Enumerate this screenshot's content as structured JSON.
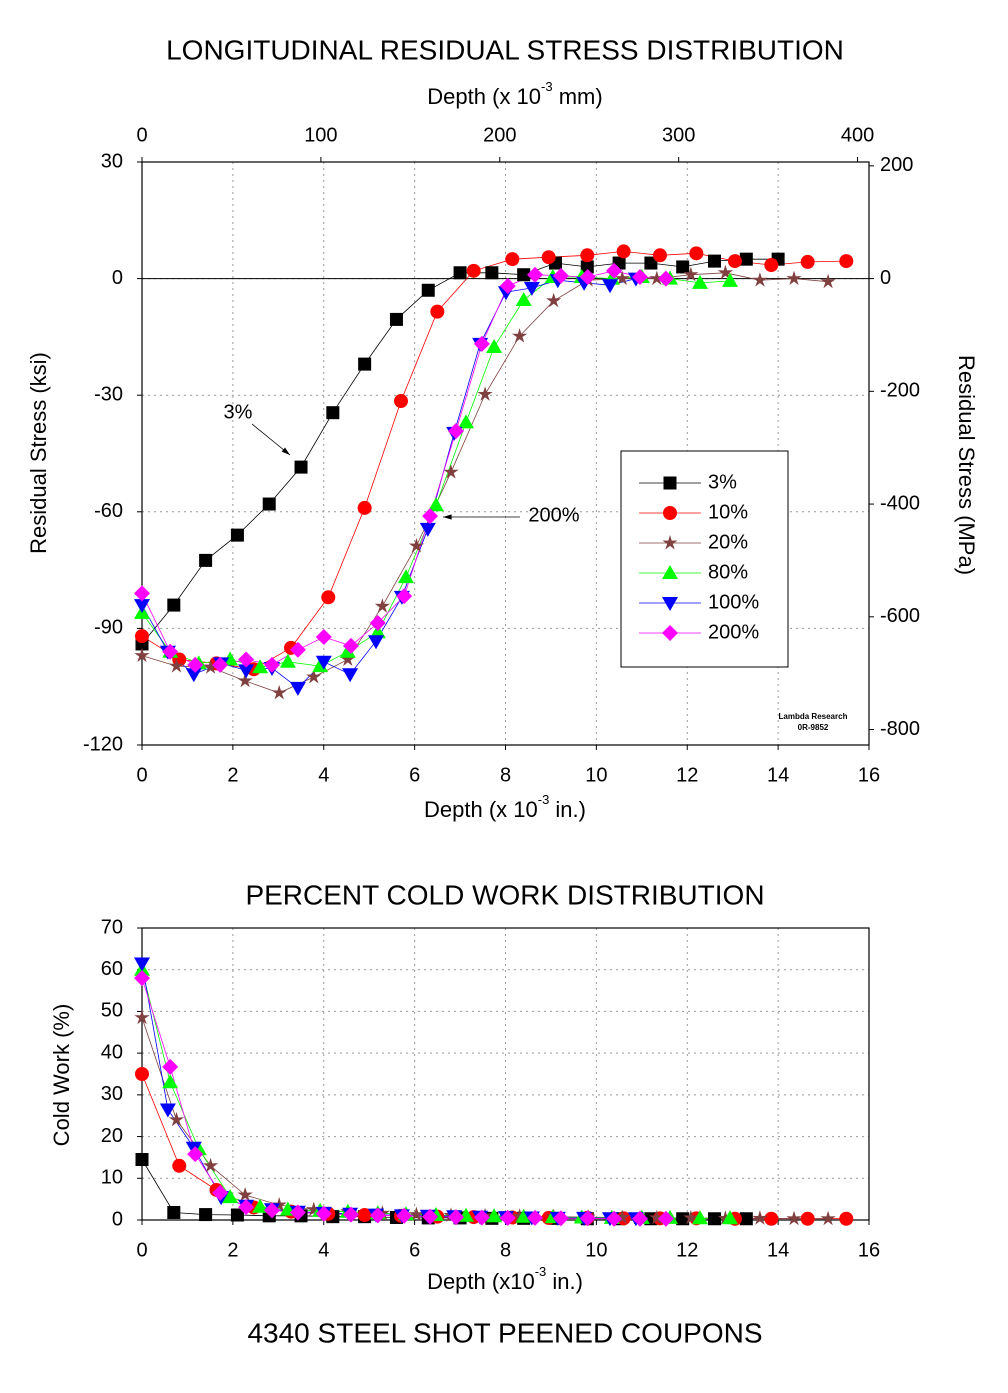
{
  "chart_data": [
    {
      "type": "scatter",
      "title": "LONGITUDINAL RESIDUAL STRESS DISTRIBUTION",
      "xlabel": {
        "text": "Depth (x 10",
        "sup": "-3",
        "rest": " in.)"
      },
      "x2label": {
        "text": "Depth (x 10",
        "sup": "-3",
        "rest": " mm)"
      },
      "ylabel": "Residual Stress (ksi)",
      "y2label": "Residual Stress (MPa)",
      "xlim": [
        0,
        16
      ],
      "xticks": [
        0,
        2,
        4,
        6,
        8,
        10,
        12,
        14,
        16
      ],
      "x2lim": [
        0,
        406.4
      ],
      "x2ticks": [
        0,
        100,
        200,
        300,
        400
      ],
      "ylim": [
        -120,
        30
      ],
      "yticks": [
        -120,
        -90,
        -60,
        -30,
        0,
        30
      ],
      "y2lim": [
        -827.4,
        206.8
      ],
      "y2ticks": [
        -800,
        -600,
        -400,
        -200,
        0,
        200
      ],
      "grid": true,
      "zero_line": true,
      "legend": "right",
      "annotations": [
        "3%",
        "200%"
      ],
      "stamp": [
        "Lambda Research",
        "0R-9852"
      ],
      "series": [
        {
          "name": "3%",
          "color": "#000000",
          "marker": "square",
          "x": [
            0,
            0.7,
            1.4,
            2.1,
            2.8,
            3.5,
            4.2,
            4.9,
            5.6,
            6.3,
            7.0,
            7.7,
            8.4,
            9.1,
            9.8,
            10.5,
            11.2,
            11.9,
            12.6,
            13.3,
            14.0
          ],
          "values": [
            -94,
            -84,
            -72.5,
            -66,
            -58,
            -48.5,
            -34.5,
            -22,
            -10.5,
            -3,
            1.5,
            1.5,
            1,
            4,
            3,
            4,
            4,
            3,
            4.5,
            5,
            5
          ]
        },
        {
          "name": "10%",
          "color": "#ff0000",
          "marker": "circle",
          "x": [
            0,
            0.82,
            1.64,
            2.46,
            3.28,
            4.1,
            4.9,
            5.7,
            6.5,
            7.3,
            8.15,
            8.95,
            9.8,
            10.6,
            11.4,
            12.2,
            13.05,
            13.85,
            14.65,
            15.5
          ],
          "values": [
            -92,
            -98,
            -99,
            -100.5,
            -95,
            -82,
            -59,
            -31.5,
            -8.5,
            2,
            5,
            5.5,
            6,
            7,
            6,
            6.5,
            4.5,
            3.5,
            4.3,
            4.5
          ]
        },
        {
          "name": "20%",
          "color": "#804040",
          "marker": "star",
          "x": [
            0,
            0.76,
            1.51,
            2.27,
            3.02,
            3.78,
            4.53,
            5.29,
            6.04,
            6.8,
            7.55,
            8.31,
            9.06,
            9.82,
            10.57,
            11.33,
            12.08,
            12.84,
            13.6,
            14.35,
            15.1
          ],
          "values": [
            -97,
            -99.7,
            -100,
            -103.5,
            -106.6,
            -102.5,
            -98,
            -84.3,
            -68.8,
            -49.8,
            -29.8,
            -14.8,
            -5.7,
            -0.4,
            0,
            0,
            1,
            1.5,
            -0.4,
            0,
            -0.8
          ]
        },
        {
          "name": "80%",
          "color": "#00ff00",
          "marker": "triangle-up",
          "x": [
            0,
            0.62,
            1.25,
            1.94,
            2.6,
            3.21,
            3.92,
            4.53,
            5.19,
            5.81,
            6.47,
            7.13,
            7.75,
            8.4,
            9.04,
            9.68,
            10.34,
            11.0,
            11.62,
            12.28,
            12.94
          ],
          "values": [
            -86,
            -96,
            -99,
            -98,
            -100,
            -98.6,
            -99.7,
            -96,
            -91,
            -76.8,
            -58.3,
            -37,
            -17.6,
            -5.5,
            0.4,
            0.4,
            0,
            0.4,
            0,
            -1.1,
            -0.6
          ]
        },
        {
          "name": "100%",
          "color": "#0000ff",
          "marker": "triangle-down",
          "x": [
            0,
            0.57,
            1.14,
            1.74,
            2.29,
            2.86,
            3.43,
            4.0,
            4.58,
            5.15,
            5.72,
            6.29,
            6.87,
            7.44,
            8.01,
            8.58,
            9.15,
            9.73,
            10.3,
            10.87
          ],
          "values": [
            -84,
            -96,
            -101.8,
            -99,
            -100.8,
            -100.2,
            -105.3,
            -98.6,
            -101.8,
            -93.3,
            -81.9,
            -64.4,
            -39.7,
            -16.8,
            -3.5,
            -2.4,
            -0.4,
            -1.1,
            -1.7,
            0
          ]
        },
        {
          "name": "200%",
          "color": "#ff00ff",
          "marker": "diamond",
          "x": [
            0,
            0.62,
            1.17,
            1.72,
            2.29,
            2.86,
            3.43,
            4.0,
            4.6,
            5.19,
            5.77,
            6.34,
            6.91,
            7.48,
            8.05,
            8.65,
            9.22,
            9.81,
            10.39,
            10.96,
            11.53
          ],
          "values": [
            -81,
            -96,
            -99.4,
            -99.4,
            -98,
            -99.4,
            -95.5,
            -92.2,
            -94.5,
            -88.6,
            -81.7,
            -61.1,
            -39.2,
            -16.8,
            -1.9,
            1,
            0.7,
            0.4,
            2,
            0.4,
            0
          ]
        }
      ]
    },
    {
      "type": "scatter",
      "title": "PERCENT COLD WORK DISTRIBUTION",
      "xlabel": {
        "text": "Depth (x10",
        "sup": "-3",
        "rest": " in.)"
      },
      "ylabel": "Cold Work (%)",
      "xlim": [
        0,
        16
      ],
      "xticks": [
        0,
        2,
        4,
        6,
        8,
        10,
        12,
        14,
        16
      ],
      "ylim": [
        0,
        70
      ],
      "yticks": [
        0,
        10,
        20,
        30,
        40,
        50,
        60,
        70
      ],
      "grid": true,
      "series": [
        {
          "color": "#000000",
          "marker": "square",
          "x": [
            0,
            0.7,
            1.4,
            2.1,
            2.8,
            3.5,
            4.2,
            4.9,
            5.6,
            6.3,
            7.0,
            7.7,
            8.4,
            9.1,
            9.8,
            10.5,
            11.2,
            11.9,
            12.6,
            13.3
          ],
          "values": [
            14.5,
            1.8,
            1.3,
            1.2,
            1.0,
            1.0,
            0.8,
            0.8,
            0.6,
            0.5,
            0.5,
            0.4,
            0.4,
            0.4,
            0.3,
            0.3,
            0.3,
            0.3,
            0.3,
            0.3
          ]
        },
        {
          "color": "#ff0000",
          "marker": "circle",
          "x": [
            0,
            0.82,
            1.64,
            2.46,
            3.28,
            4.1,
            4.9,
            5.7,
            6.5,
            7.3,
            8.15,
            8.95,
            9.8,
            10.6,
            11.4,
            12.2,
            13.05,
            13.85,
            14.65,
            15.5
          ],
          "values": [
            35,
            13,
            7.2,
            3,
            2,
            1.5,
            1.2,
            1,
            0.8,
            0.7,
            0.6,
            0.5,
            0.5,
            0.4,
            0.4,
            0.4,
            0.3,
            0.3,
            0.3,
            0.3
          ]
        },
        {
          "color": "#804040",
          "marker": "star",
          "x": [
            0,
            0.76,
            1.51,
            2.27,
            3.02,
            3.78,
            4.53,
            5.29,
            6.04,
            6.8,
            7.55,
            8.31,
            9.06,
            9.82,
            10.57,
            11.33,
            12.08,
            12.84,
            13.6,
            14.35,
            15.1
          ],
          "values": [
            48.5,
            24,
            13,
            6,
            3.6,
            2.5,
            2,
            1.6,
            1.3,
            1.1,
            1,
            0.9,
            0.8,
            0.7,
            0.6,
            0.5,
            0.5,
            0.4,
            0.4,
            0.3,
            0.3
          ]
        },
        {
          "color": "#00ff00",
          "marker": "triangle-up",
          "x": [
            0,
            0.62,
            1.25,
            1.94,
            2.6,
            3.21,
            3.92,
            4.53,
            5.19,
            5.81,
            6.47,
            7.13,
            7.75,
            8.4,
            9.04,
            9.68,
            10.34,
            11.0,
            11.62,
            12.28,
            12.94
          ],
          "values": [
            60,
            33,
            17,
            5.5,
            3.2,
            2.5,
            2.2,
            2,
            1.6,
            1.4,
            1.2,
            1,
            0.9,
            0.8,
            0.7,
            0.6,
            0.5,
            0.5,
            0.5,
            0.4,
            0.4
          ]
        },
        {
          "color": "#0000ff",
          "marker": "triangle-down",
          "x": [
            0,
            0.57,
            1.14,
            1.74,
            2.29,
            2.86,
            3.43,
            4.0,
            4.58,
            5.15,
            5.72,
            6.29,
            6.87,
            7.44,
            8.01,
            8.58,
            9.15,
            9.73,
            10.3,
            10.87
          ],
          "values": [
            61.5,
            26.5,
            17.3,
            5.5,
            3.4,
            2.6,
            2,
            1.7,
            1.5,
            1.3,
            1.1,
            1,
            0.9,
            0.8,
            0.7,
            0.6,
            0.5,
            0.5,
            0.4,
            0.4
          ]
        },
        {
          "color": "#ff00ff",
          "marker": "diamond",
          "x": [
            0,
            0.62,
            1.17,
            1.72,
            2.29,
            2.86,
            3.43,
            4.0,
            4.6,
            5.19,
            5.77,
            6.34,
            6.91,
            7.48,
            8.05,
            8.65,
            9.22,
            9.81,
            10.39,
            10.96,
            11.53
          ],
          "values": [
            58,
            36.7,
            15.8,
            6.5,
            3.1,
            2.3,
            1.8,
            1.5,
            1.3,
            1.1,
            1,
            0.8,
            0.7,
            0.6,
            0.5,
            0.5,
            0.4,
            0.4,
            0.3,
            0.3,
            0.3
          ]
        }
      ]
    }
  ],
  "caption": "4340 STEEL SHOT PEENED COUPONS"
}
